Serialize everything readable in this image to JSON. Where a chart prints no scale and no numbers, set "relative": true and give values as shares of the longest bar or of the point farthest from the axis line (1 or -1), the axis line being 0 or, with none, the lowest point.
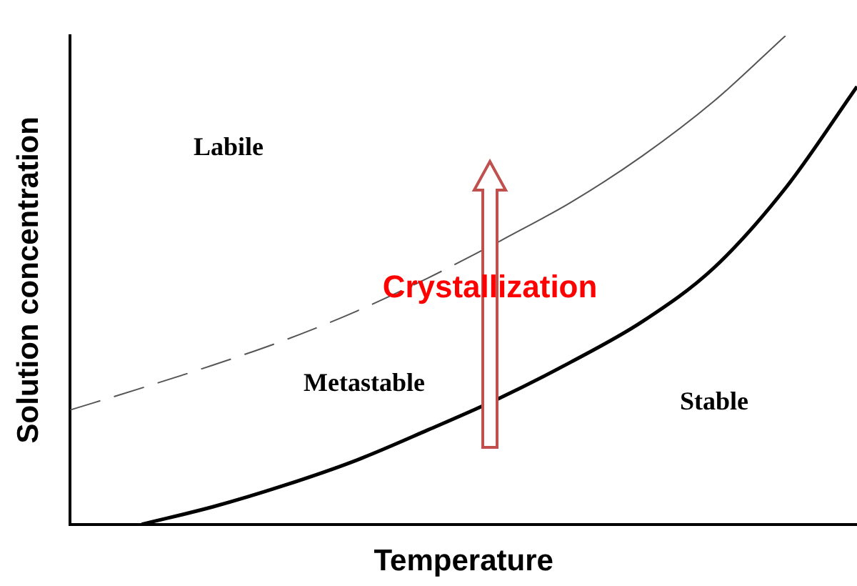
{
  "chart_data": {
    "type": "line",
    "relative": true,
    "xlabel": "Temperature",
    "ylabel": "Solution concentration",
    "categories": [
      null,
      null,
      null,
      null,
      null,
      null,
      null,
      null,
      null,
      null,
      null,
      null
    ],
    "series": [
      {
        "color": "#000000",
        "line_style": "solid",
        "values": [
          null,
          0,
          0.036,
          0.08,
          0.131,
          0.193,
          0.258,
          0.332,
          0.415,
          0.525,
          0.688,
          0.896
        ]
      },
      {
        "color": "#555555",
        "line_style": "dashed",
        "values": [
          0.234,
          0.279,
          0.326,
          0.377,
          0.436,
          0.504,
          0.579,
          null,
          null,
          null,
          null,
          null
        ]
      },
      {
        "color": "#555555",
        "line_style": "solid",
        "values": [
          null,
          null,
          null,
          null,
          null,
          null,
          0.579,
          0.659,
          0.754,
          0.866,
          1,
          null
        ]
      }
    ],
    "annotations": [
      "Labile",
      "Metastable",
      "Stable",
      "Crystallization"
    ],
    "grid": false,
    "legend": false,
    "marker": "none",
    "tick_labels": false
  }
}
